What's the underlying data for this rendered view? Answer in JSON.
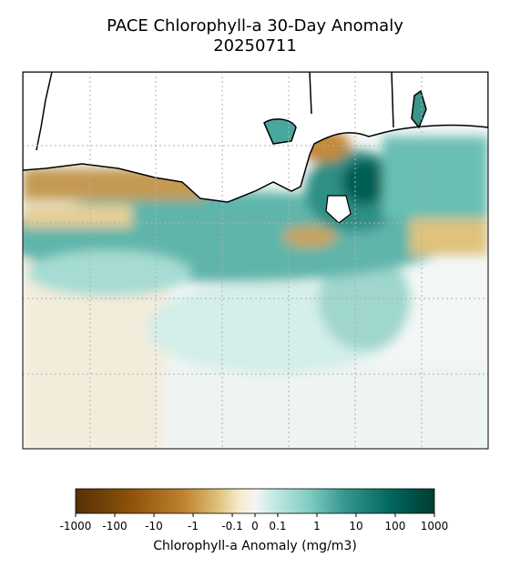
{
  "title": "PACE Chlorophyll-a 30-Day Anomaly",
  "subtitle": "20250711",
  "colorbar": {
    "label": "Chlorophyll-a Anomaly (mg/m3)",
    "scale": "symlog",
    "lim": [
      -1000,
      1000
    ],
    "ticks": [
      -1000,
      -100,
      -10,
      -1,
      -0.1,
      0,
      0.1,
      1,
      10,
      100,
      1000
    ]
  }
}
